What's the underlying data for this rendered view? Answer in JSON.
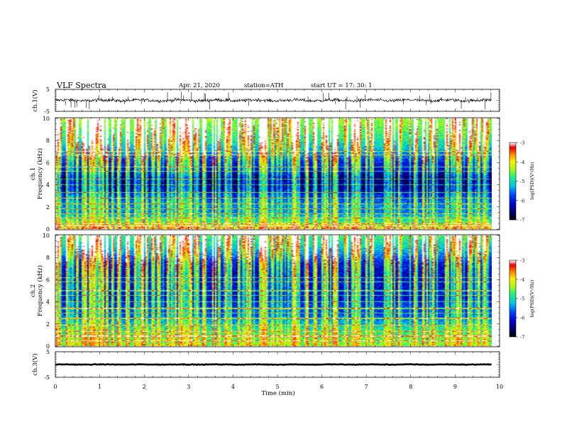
{
  "header": {
    "title": "VLF  Spectra",
    "date": "Apr. 21, 2020",
    "station": "station=ATH",
    "start": "start  UT  =    17: 30: 1"
  },
  "chart_data": [
    {
      "type": "line",
      "name": "ch1-waveform",
      "ylabel": "ch.1(V)",
      "yticks": [
        "5",
        "-5"
      ],
      "ylim": [
        -5,
        5
      ],
      "xlim": [
        0,
        10
      ],
      "data_end_min": 9.82,
      "mean_v": 0.0,
      "noise_v": 0.7
    },
    {
      "type": "heatmap",
      "name": "ch1-spectrogram",
      "ylabel_top": "ch.1",
      "ylabel": "Frequency  (kHz)",
      "yticks": [
        "0",
        "2",
        "4",
        "6",
        "8",
        "10"
      ],
      "ylim": [
        0,
        10
      ],
      "xlim": [
        0,
        10
      ],
      "data_end_min": 9.82,
      "colorbar": {
        "label": "log(PSD)(V²/Hz)",
        "ticks": [
          "-3",
          "-4",
          "-5",
          "-6",
          "-7"
        ],
        "range": [
          -7,
          -3
        ]
      },
      "profile_khz": [
        [
          0,
          -4.0
        ],
        [
          0.3,
          -4.4
        ],
        [
          0.8,
          -5.0
        ],
        [
          1.5,
          -5.6
        ],
        [
          2.3,
          -5.6
        ],
        [
          3.0,
          -6.0
        ],
        [
          3.6,
          -6.5
        ],
        [
          4.6,
          -6.7
        ],
        [
          5.3,
          -6.2
        ],
        [
          6.0,
          -6.0
        ],
        [
          7.0,
          -5.4
        ],
        [
          8.0,
          -4.9
        ],
        [
          9.0,
          -4.6
        ],
        [
          10.0,
          -4.4
        ]
      ],
      "lines_khz": [
        0.3,
        0.5,
        1.0,
        1.4,
        1.8,
        2.3,
        2.8,
        3.3,
        4.0,
        4.5,
        5.2,
        5.6,
        6.7,
        7.0
      ]
    },
    {
      "type": "heatmap",
      "name": "ch2-spectrogram",
      "ylabel_top": "ch.2",
      "ylabel": "Frequency  (kHz)",
      "yticks": [
        "0",
        "2",
        "4",
        "6",
        "8",
        "10"
      ],
      "ylim": [
        0,
        10
      ],
      "xlim": [
        0,
        10
      ],
      "data_end_min": 9.82,
      "colorbar": {
        "label": "log(PSD)(V²/Hz)",
        "ticks": [
          "-3",
          "-4",
          "-5",
          "-6",
          "-7"
        ],
        "range": [
          -7,
          -3
        ]
      },
      "profile_khz": [
        [
          0,
          -4.5
        ],
        [
          0.5,
          -4.6
        ],
        [
          1.0,
          -4.8
        ],
        [
          1.6,
          -5.0
        ],
        [
          2.0,
          -5.3
        ],
        [
          2.8,
          -5.8
        ],
        [
          3.5,
          -5.9
        ],
        [
          4.5,
          -6.2
        ],
        [
          5.5,
          -6.1
        ],
        [
          6.5,
          -6.2
        ],
        [
          7.5,
          -6.0
        ],
        [
          8.2,
          -5.5
        ],
        [
          9.0,
          -5.1
        ],
        [
          10.0,
          -4.7
        ]
      ],
      "lines_khz": [
        0.5,
        0.9,
        1.3,
        1.9,
        2.5,
        3.0,
        3.4,
        4.0,
        4.6,
        5.0,
        5.8,
        6.2
      ]
    },
    {
      "type": "line",
      "name": "ch3-waveform",
      "ylabel": "ch.3(V)",
      "yticks": [
        "5",
        "-5"
      ],
      "ylim": [
        -5,
        5
      ],
      "xlim": [
        0,
        10
      ],
      "data_end_min": 9.82,
      "mean_v": 0.0,
      "noise_v": 0.12,
      "xlabel": "Time  (min)",
      "xticks": [
        "0",
        "1",
        "2",
        "3",
        "4",
        "5",
        "6",
        "7",
        "8",
        "9",
        "10"
      ]
    }
  ]
}
